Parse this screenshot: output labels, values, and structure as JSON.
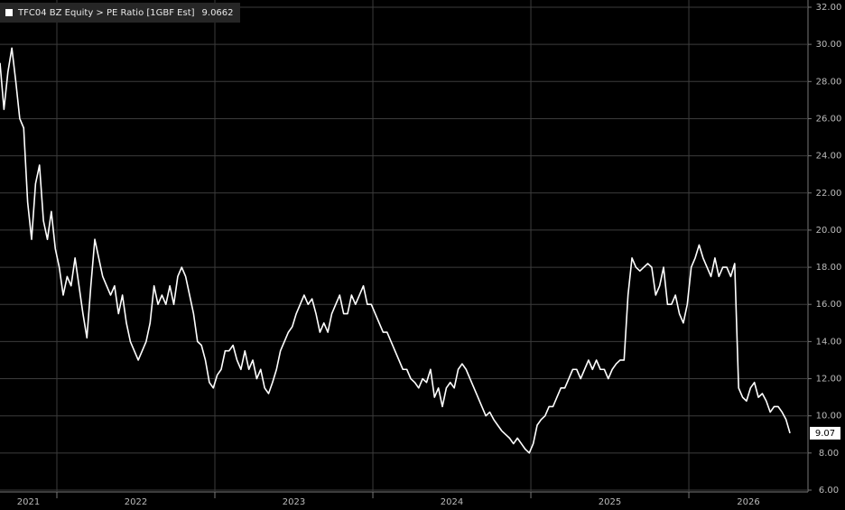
{
  "chart_data": {
    "type": "line",
    "x": [
      2021.64,
      2021.665,
      2021.69,
      2021.715,
      2021.74,
      2021.765,
      2021.79,
      2021.815,
      2021.84,
      2021.865,
      2021.89,
      2021.915,
      2021.94,
      2021.965,
      2021.99,
      2022.015,
      2022.04,
      2022.065,
      2022.09,
      2022.115,
      2022.14,
      2022.165,
      2022.19,
      2022.215,
      2022.24,
      2022.265,
      2022.29,
      2022.315,
      2022.34,
      2022.365,
      2022.39,
      2022.415,
      2022.44,
      2022.465,
      2022.49,
      2022.515,
      2022.54,
      2022.565,
      2022.59,
      2022.615,
      2022.64,
      2022.665,
      2022.69,
      2022.715,
      2022.74,
      2022.765,
      2022.79,
      2022.815,
      2022.84,
      2022.865,
      2022.89,
      2022.915,
      2022.94,
      2022.965,
      2022.99,
      2023.015,
      2023.04,
      2023.065,
      2023.09,
      2023.115,
      2023.14,
      2023.165,
      2023.19,
      2023.215,
      2023.24,
      2023.265,
      2023.29,
      2023.315,
      2023.34,
      2023.365,
      2023.39,
      2023.415,
      2023.44,
      2023.465,
      2023.49,
      2023.515,
      2023.54,
      2023.565,
      2023.59,
      2023.615,
      2023.64,
      2023.665,
      2023.69,
      2023.715,
      2023.74,
      2023.765,
      2023.79,
      2023.815,
      2023.84,
      2023.865,
      2023.89,
      2023.915,
      2023.94,
      2023.965,
      2023.99,
      2024.015,
      2024.04,
      2024.065,
      2024.09,
      2024.115,
      2024.14,
      2024.165,
      2024.19,
      2024.215,
      2024.24,
      2024.265,
      2024.29,
      2024.315,
      2024.34,
      2024.365,
      2024.39,
      2024.415,
      2024.44,
      2024.465,
      2024.49,
      2024.515,
      2024.54,
      2024.565,
      2024.59,
      2024.615,
      2024.64,
      2024.665,
      2024.69,
      2024.715,
      2024.74,
      2024.765,
      2024.79,
      2024.815,
      2024.84,
      2024.865,
      2024.89,
      2024.915,
      2024.94,
      2024.965,
      2024.99,
      2025.015,
      2025.04,
      2025.065,
      2025.09,
      2025.115,
      2025.14,
      2025.165,
      2025.19,
      2025.215,
      2025.24,
      2025.265,
      2025.29,
      2025.315,
      2025.34,
      2025.365,
      2025.39,
      2025.415,
      2025.44,
      2025.465,
      2025.49,
      2025.515,
      2025.54,
      2025.565,
      2025.59,
      2025.615,
      2025.64,
      2025.665,
      2025.69,
      2025.715,
      2025.74,
      2025.765,
      2025.79,
      2025.815,
      2025.84,
      2025.865,
      2025.89,
      2025.915,
      2025.94,
      2025.965,
      2025.99,
      2026.015,
      2026.04,
      2026.065,
      2026.09,
      2026.115,
      2026.14,
      2026.165,
      2026.19,
      2026.215,
      2026.24,
      2026.265,
      2026.29,
      2026.315,
      2026.34,
      2026.365,
      2026.39,
      2026.415,
      2026.44,
      2026.465,
      2026.49,
      2026.515,
      2026.54,
      2026.565,
      2026.59,
      2026.615,
      2026.64
    ],
    "series": [
      {
        "name": "TFC04 BZ Equity > PE Ratio [1GBF Est]",
        "color": "#ffffff",
        "values": [
          29.0,
          26.5,
          28.5,
          29.8,
          28.0,
          26.0,
          25.5,
          21.5,
          19.5,
          22.5,
          23.5,
          20.5,
          19.5,
          21.0,
          19.0,
          18.0,
          16.5,
          17.5,
          17.0,
          18.5,
          17.0,
          15.5,
          14.2,
          17.0,
          19.5,
          18.5,
          17.5,
          17.0,
          16.5,
          17.0,
          15.5,
          16.5,
          15.0,
          14.0,
          13.5,
          13.0,
          13.5,
          14.0,
          15.0,
          17.0,
          16.0,
          16.5,
          16.0,
          17.0,
          16.0,
          17.5,
          18.0,
          17.5,
          16.5,
          15.5,
          14.0,
          13.8,
          13.0,
          11.8,
          11.5,
          12.2,
          12.5,
          13.5,
          13.5,
          13.8,
          13.0,
          12.5,
          13.5,
          12.5,
          13.0,
          12.0,
          12.5,
          11.5,
          11.2,
          11.8,
          12.5,
          13.5,
          14.0,
          14.5,
          14.8,
          15.5,
          16.0,
          16.5,
          16.0,
          16.3,
          15.5,
          14.5,
          15.0,
          14.5,
          15.5,
          16.0,
          16.5,
          15.5,
          15.5,
          16.5,
          16.0,
          16.5,
          17.0,
          16.0,
          16.0,
          15.5,
          15.0,
          14.5,
          14.5,
          14.0,
          13.5,
          13.0,
          12.5,
          12.5,
          12.0,
          11.8,
          11.5,
          12.0,
          11.8,
          12.5,
          11.0,
          11.5,
          10.5,
          11.5,
          11.8,
          11.5,
          12.5,
          12.8,
          12.5,
          12.0,
          11.5,
          11.0,
          10.5,
          10.0,
          10.2,
          9.8,
          9.5,
          9.2,
          9.0,
          8.8,
          8.5,
          8.8,
          8.5,
          8.2,
          8.0,
          8.5,
          9.5,
          9.8,
          10.0,
          10.5,
          10.5,
          11.0,
          11.5,
          11.5,
          12.0,
          12.5,
          12.5,
          12.0,
          12.5,
          13.0,
          12.5,
          13.0,
          12.5,
          12.5,
          12.0,
          12.5,
          12.8,
          13.0,
          13.0,
          16.5,
          18.5,
          18.0,
          17.8,
          18.0,
          18.2,
          18.0,
          16.5,
          17.0,
          18.0,
          16.0,
          16.0,
          16.5,
          15.5,
          15.0,
          16.0,
          18.0,
          18.5,
          19.2,
          18.5,
          18.0,
          17.5,
          18.5,
          17.5,
          18.0,
          18.0,
          17.5,
          18.2,
          11.5,
          11.0,
          10.8,
          11.5,
          11.8,
          11.0,
          11.2,
          10.8,
          10.2,
          10.5,
          10.5,
          10.2,
          9.8,
          9.0662
        ],
        "last_value_label": "9.07"
      }
    ],
    "xlim": [
      2021.64,
      2026.754
    ],
    "xticks": [
      2021,
      2022,
      2023,
      2024,
      2025,
      2026
    ],
    "ylim": [
      6,
      32
    ],
    "yticks": [
      {
        "value": 6,
        "label": "6.00"
      },
      {
        "value": 8,
        "label": "8.00"
      },
      {
        "value": 10,
        "label": "10.00"
      },
      {
        "value": 12,
        "label": "12.00"
      },
      {
        "value": 14,
        "label": "14.00"
      },
      {
        "value": 16,
        "label": "16.00"
      },
      {
        "value": 18,
        "label": "18.00"
      },
      {
        "value": 20,
        "label": "20.00"
      },
      {
        "value": 22,
        "label": "22.00"
      },
      {
        "value": 24,
        "label": "24.00"
      },
      {
        "value": 26,
        "label": "26.00"
      },
      {
        "value": 28,
        "label": "28.00"
      },
      {
        "value": 30,
        "label": "30.00"
      },
      {
        "value": 32,
        "label": "32.00"
      }
    ],
    "grid": true,
    "legend": "top-left"
  }
}
